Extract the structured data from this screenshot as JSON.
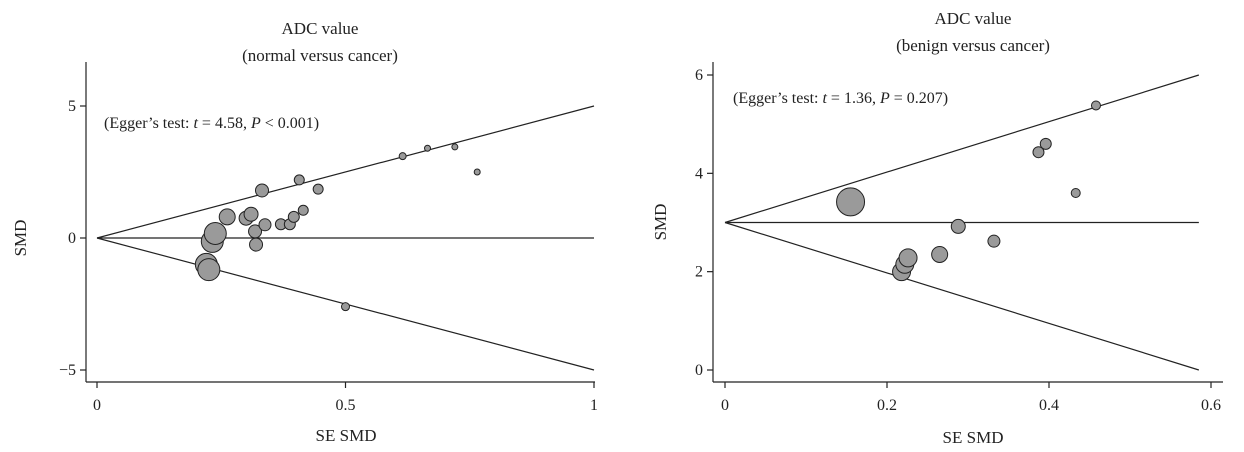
{
  "chart_data": [
    {
      "type": "scatter",
      "title": "ADC value",
      "subtitle": "(normal versus cancer)",
      "xlabel": "SE SMD",
      "ylabel": "SMD",
      "xlim": [
        0,
        1
      ],
      "ylim": [
        -5.3,
        6.5
      ],
      "xticks": [
        0,
        0.5,
        1
      ],
      "xtick_labels": [
        "0",
        "0.5",
        "1"
      ],
      "yticks": [
        -5,
        0,
        5
      ],
      "ytick_labels": [
        "−5",
        "0",
        "5"
      ],
      "annotation": {
        "prefix": "(Egger’s test: ",
        "t_symbol": "t",
        "t_value": " = 4.58, ",
        "p_symbol": "P",
        "p_value": " < 0.001)"
      },
      "reference_lines": [
        {
          "x": [
            0,
            1
          ],
          "y": [
            0,
            0
          ]
        },
        {
          "x": [
            0,
            1
          ],
          "y": [
            0,
            5
          ]
        },
        {
          "x": [
            0,
            1
          ],
          "y": [
            0,
            -5
          ]
        }
      ],
      "points": [
        {
          "x": 0.22,
          "y": -1.0,
          "weight": 11
        },
        {
          "x": 0.225,
          "y": -1.2,
          "weight": 11
        },
        {
          "x": 0.232,
          "y": -0.13,
          "weight": 11
        },
        {
          "x": 0.238,
          "y": 0.17,
          "weight": 11
        },
        {
          "x": 0.262,
          "y": 0.8,
          "weight": 8
        },
        {
          "x": 0.3,
          "y": 0.75,
          "weight": 7
        },
        {
          "x": 0.31,
          "y": 0.9,
          "weight": 7
        },
        {
          "x": 0.318,
          "y": 0.25,
          "weight": 6.5
        },
        {
          "x": 0.32,
          "y": -0.25,
          "weight": 6.5
        },
        {
          "x": 0.332,
          "y": 1.8,
          "weight": 6.5
        },
        {
          "x": 0.338,
          "y": 0.5,
          "weight": 6
        },
        {
          "x": 0.37,
          "y": 0.52,
          "weight": 5.5
        },
        {
          "x": 0.388,
          "y": 0.52,
          "weight": 5.5
        },
        {
          "x": 0.396,
          "y": 0.8,
          "weight": 5.5
        },
        {
          "x": 0.407,
          "y": 2.2,
          "weight": 5
        },
        {
          "x": 0.415,
          "y": 1.05,
          "weight": 5
        },
        {
          "x": 0.445,
          "y": 1.85,
          "weight": 5
        },
        {
          "x": 0.5,
          "y": -2.6,
          "weight": 4
        },
        {
          "x": 0.615,
          "y": 3.1,
          "weight": 3.5
        },
        {
          "x": 0.665,
          "y": 3.4,
          "weight": 3
        },
        {
          "x": 0.72,
          "y": 3.45,
          "weight": 3
        },
        {
          "x": 0.765,
          "y": 2.5,
          "weight": 3
        }
      ]
    },
    {
      "type": "scatter",
      "title": "ADC value",
      "subtitle": "(benign versus cancer)",
      "xlabel": "SE SMD",
      "ylabel": "SMD",
      "xlim": [
        0,
        0.6
      ],
      "ylim": [
        -0.1,
        6.2
      ],
      "xticks": [
        0,
        0.2,
        0.4,
        0.6
      ],
      "xtick_labels": [
        "0",
        "0.2",
        "0.4",
        "0.6"
      ],
      "yticks": [
        0,
        2,
        4,
        6
      ],
      "ytick_labels": [
        "0",
        "2",
        "4",
        "6"
      ],
      "annotation": {
        "prefix": "(Egger’s test: ",
        "t_symbol": "t",
        "t_value": " = 1.36, ",
        "p_symbol": "P",
        "p_value": " = 0.207)"
      },
      "reference_lines": [
        {
          "x": [
            0,
            0.585
          ],
          "y": [
            3,
            3
          ]
        },
        {
          "x": [
            0,
            0.585
          ],
          "y": [
            3,
            6
          ]
        },
        {
          "x": [
            0,
            0.585
          ],
          "y": [
            3,
            0
          ]
        }
      ],
      "points": [
        {
          "x": 0.155,
          "y": 3.42,
          "weight": 14
        },
        {
          "x": 0.218,
          "y": 2.0,
          "weight": 9
        },
        {
          "x": 0.222,
          "y": 2.15,
          "weight": 9
        },
        {
          "x": 0.226,
          "y": 2.28,
          "weight": 9
        },
        {
          "x": 0.265,
          "y": 2.35,
          "weight": 8
        },
        {
          "x": 0.288,
          "y": 2.92,
          "weight": 7
        },
        {
          "x": 0.332,
          "y": 2.62,
          "weight": 6
        },
        {
          "x": 0.387,
          "y": 4.43,
          "weight": 5.5
        },
        {
          "x": 0.396,
          "y": 4.6,
          "weight": 5.5
        },
        {
          "x": 0.433,
          "y": 3.6,
          "weight": 4.5
        },
        {
          "x": 0.458,
          "y": 5.38,
          "weight": 4.5
        }
      ]
    }
  ]
}
